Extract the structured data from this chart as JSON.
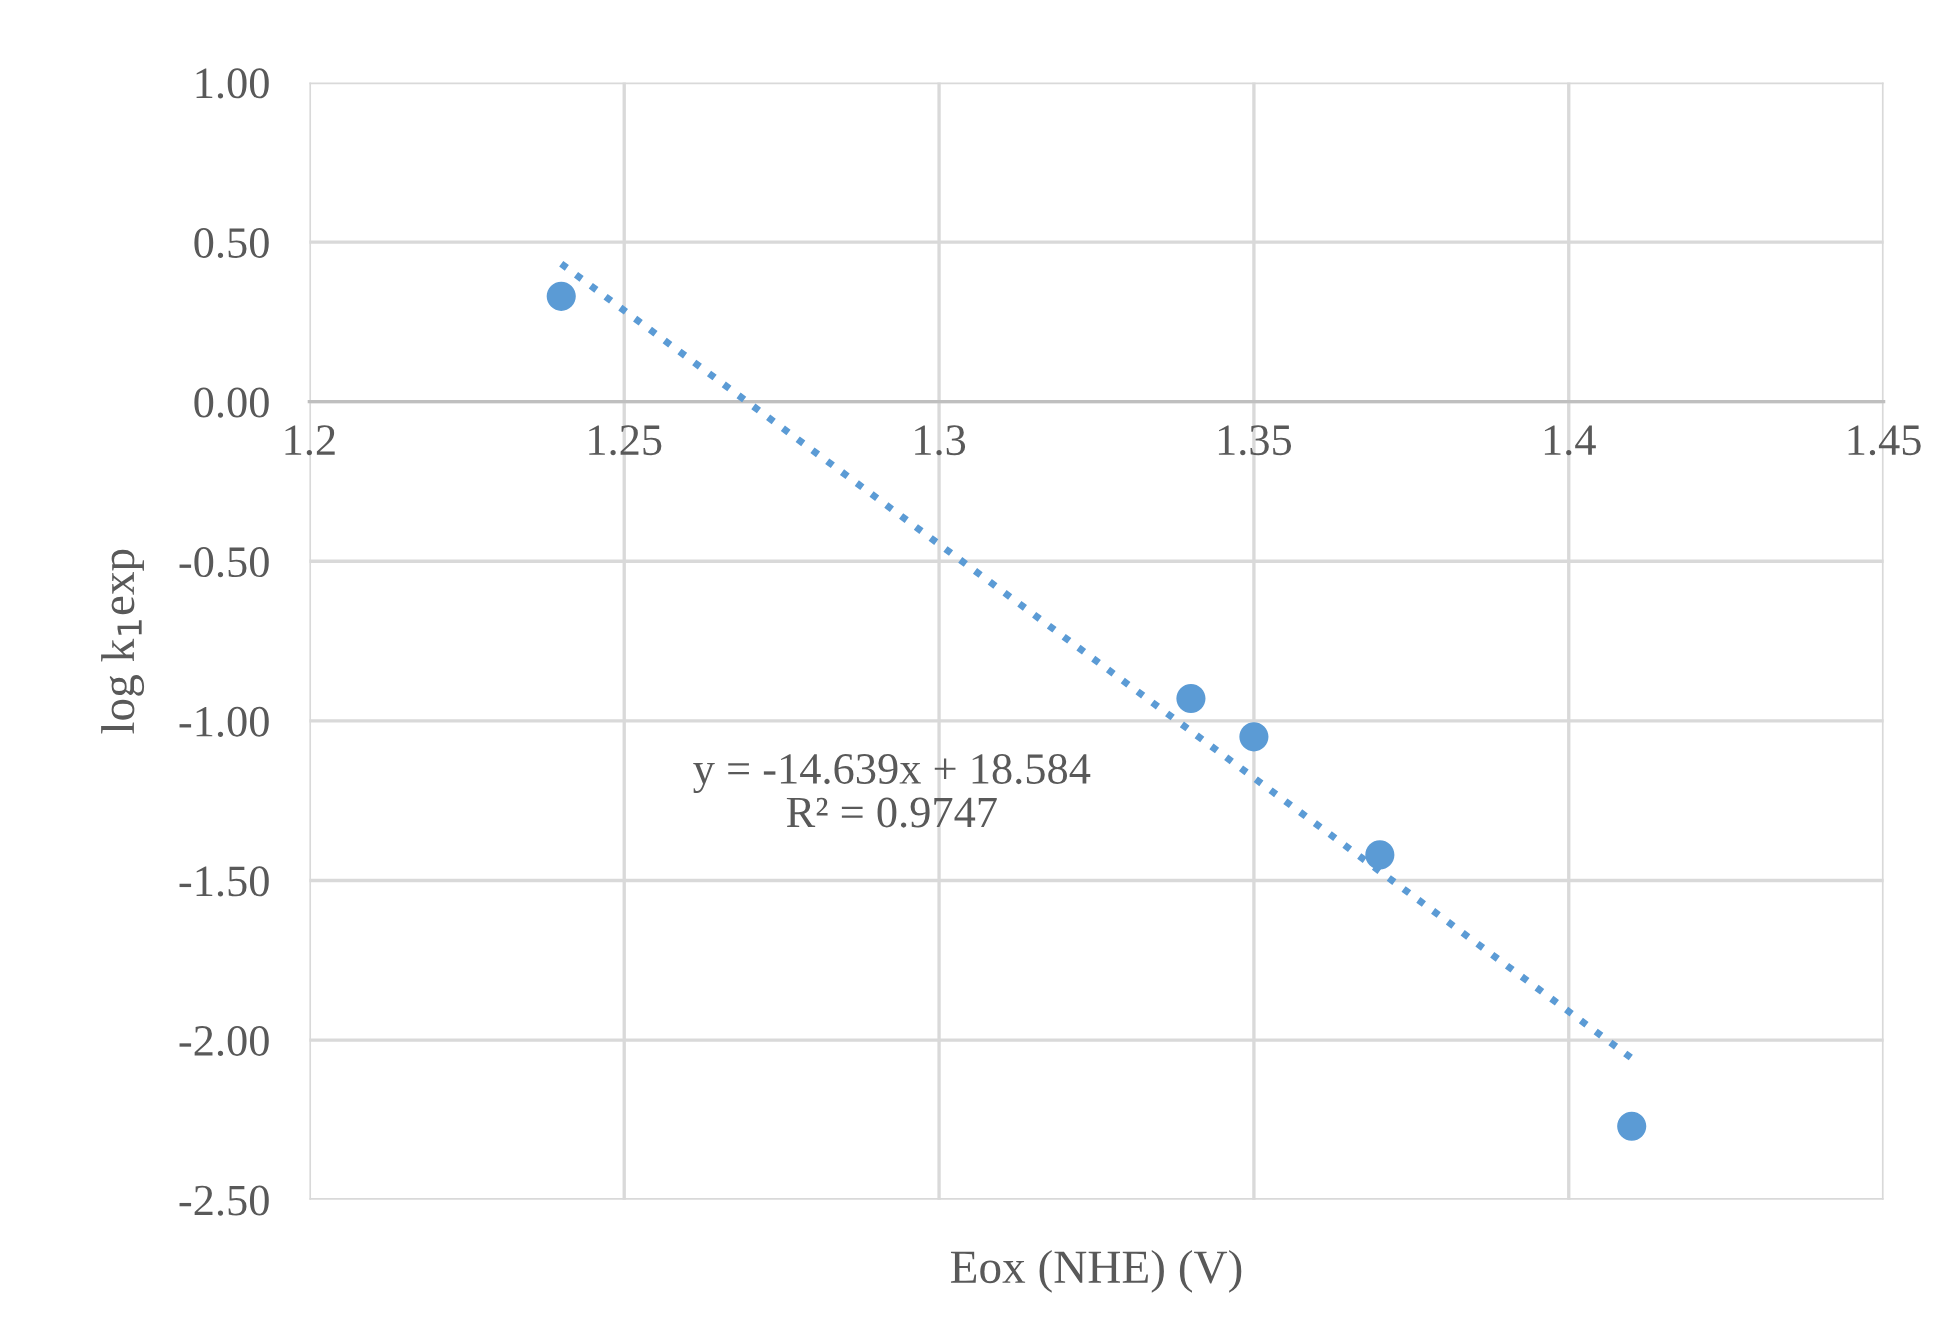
{
  "chart_data": {
    "type": "scatter",
    "xlabel": "Eox (NHE) (V)",
    "ylabel": "log k$_{1}$exp",
    "xlim": [
      1.2,
      1.45
    ],
    "xticks": [
      1.2,
      1.25,
      1.3,
      1.35,
      1.4,
      1.45
    ],
    "ylim": [
      -2.5,
      1.0
    ],
    "yticks": [
      {
        "value": -2.5,
        "label": "-2.50"
      },
      {
        "value": -2.0,
        "label": "-2.00"
      },
      {
        "value": -1.5,
        "label": "-1.50"
      },
      {
        "value": -1.0,
        "label": "-1.00"
      },
      {
        "value": -0.5,
        "label": "-0.50"
      },
      {
        "value": 0.0,
        "label": "0.00"
      },
      {
        "value": 0.5,
        "label": "0.50"
      },
      {
        "value": 1.0,
        "label": "1.00"
      }
    ],
    "grid": true,
    "legend": false,
    "marker": "circle",
    "series": [
      {
        "color": "#5b9bd5",
        "x": [
          1.24,
          1.34,
          1.35,
          1.37,
          1.41
        ],
        "values": [
          0.33,
          -0.93,
          -1.05,
          -1.42,
          -2.27
        ]
      },
      {
        "type": "line",
        "color": "#5b9bd5",
        "line_style": "dotted",
        "marker": "none",
        "x": [
          1.24,
          1.41
        ],
        "values": [
          0.432,
          -2.057
        ]
      }
    ],
    "annotations": [
      "y = -14.639x + 18.584\nR² = 0.9747"
    ]
  }
}
